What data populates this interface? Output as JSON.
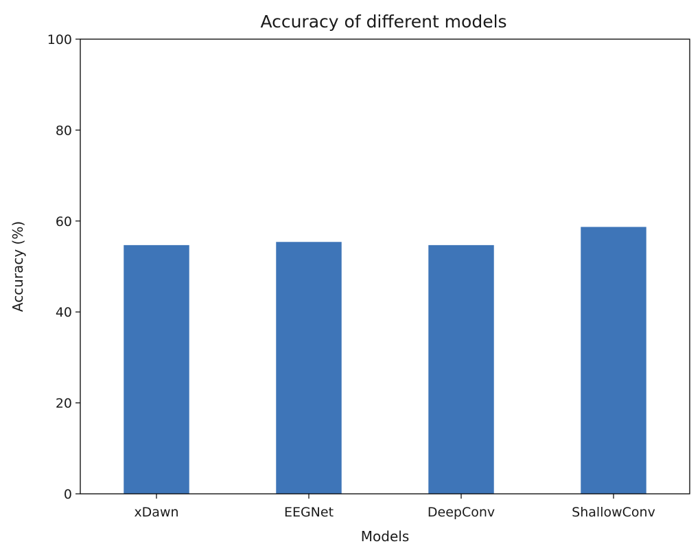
{
  "chart_data": {
    "type": "bar",
    "title": "Accuracy of different models",
    "xlabel": "Models",
    "ylabel": "Accuracy (%)",
    "categories": [
      "xDawn",
      "EEGNet",
      "DeepConv",
      "ShallowConv"
    ],
    "values": [
      54.7,
      55.4,
      54.7,
      58.7
    ],
    "ylim": [
      0,
      100
    ],
    "yticks": [
      "0",
      "20",
      "40",
      "60",
      "80",
      "100"
    ],
    "grid": false,
    "bar_color": "#3e75b8"
  }
}
